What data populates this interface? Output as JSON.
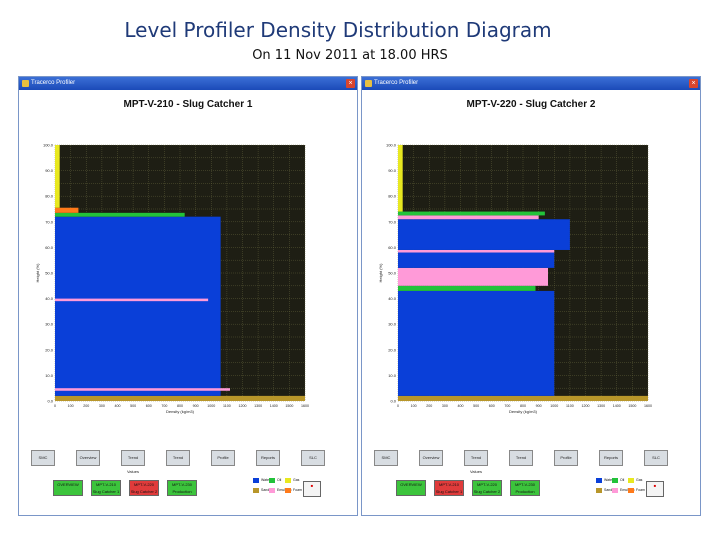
{
  "slide": {
    "title": "Level Profiler Density Distribution Diagram",
    "subtitle": "On 11 Nov 2011 at 18.00 HRS"
  },
  "colors": {
    "water": "#0a3fd8",
    "oil": "#22c23a",
    "gas": "#e8e820",
    "sand": "#b8962a",
    "emulsion": "#ff9ad8",
    "foam": "#ff7a1a",
    "plot_bg": "#1e1e14",
    "grid": "#6a6a40",
    "button_green": "#3cc43c",
    "button_red": "#e03b3b"
  },
  "windows": [
    {
      "app_title": "Tracerco Profiler",
      "chart_title": "MPT-V-210 - Slug Catcher 1",
      "buttons": [
        "SMC",
        "Overview",
        "Trend Values",
        "Trend",
        "Profile",
        "Reports",
        "SLC"
      ],
      "status": [
        {
          "label": "OVERVIEW",
          "color": "green"
        },
        {
          "label": "MPT-V-210 Slug Catcher 1",
          "color": "green"
        },
        {
          "label": "MPT-V-220 Slug Catcher 2",
          "color": "red"
        },
        {
          "label": "MPT-V-230 Production Separator",
          "color": "green"
        }
      ]
    },
    {
      "app_title": "Tracerco Profiler",
      "chart_title": "MPT-V-220 - Slug Catcher 2",
      "buttons": [
        "SMC",
        "Overview",
        "Trend Values",
        "Trend",
        "Profile",
        "Reports",
        "SLC"
      ],
      "status": [
        {
          "label": "OVERVIEW",
          "color": "green"
        },
        {
          "label": "MPT-V-210 Slug Catcher 1",
          "color": "red"
        },
        {
          "label": "MPT-V-220 Slug Catcher 2",
          "color": "green"
        },
        {
          "label": "MPT-V-230 Production Separator",
          "color": "green"
        }
      ]
    }
  ],
  "legend": [
    {
      "label": "Water",
      "color": "#0a3fd8"
    },
    {
      "label": "Oil",
      "color": "#22c23a"
    },
    {
      "label": "Gas",
      "color": "#e8e820"
    },
    {
      "label": "Sand",
      "color": "#b8962a"
    },
    {
      "label": "Emulsion",
      "color": "#ff9ad8"
    },
    {
      "label": "Foam",
      "color": "#ff7a1a"
    }
  ],
  "chart_data": [
    {
      "type": "bar",
      "title": "MPT-V-210 - Slug Catcher 1",
      "xlabel": "Density (kg/m3)",
      "ylabel": "Height (%)",
      "xlim": [
        0,
        1600
      ],
      "ylim": [
        0,
        100
      ],
      "x_ticks": [
        "0",
        "100",
        "200",
        "300",
        "400",
        "500",
        "600",
        "700",
        "800",
        "900",
        "1000",
        "1100",
        "1200",
        "1300",
        "1400",
        "1500",
        "1600"
      ],
      "y_ticks": [
        "0.0",
        "5.0",
        "10.0",
        "15.0",
        "20.0",
        "25.0",
        "30.0",
        "35.0",
        "40.0",
        "45.0",
        "50.0",
        "55.0",
        "60.0",
        "65.0",
        "70.0",
        "75.0",
        "80.0",
        "85.0",
        "90.0",
        "95.0",
        "100.0"
      ],
      "layers": [
        {
          "phase": "Sand",
          "from": 0,
          "to": 2,
          "density": 1600
        },
        {
          "phase": "Water",
          "from": 2,
          "to": 72,
          "density": 1060
        },
        {
          "phase": "Emulsion",
          "from": 39,
          "to": 40,
          "density": 980
        },
        {
          "phase": "Emulsion",
          "from": 4,
          "to": 5,
          "density": 1120
        },
        {
          "phase": "Oil",
          "from": 72,
          "to": 73.5,
          "density": 830
        },
        {
          "phase": "Foam",
          "from": 73.5,
          "to": 75.5,
          "density": 150
        },
        {
          "phase": "Gas",
          "from": 75.5,
          "to": 100,
          "density": 30
        }
      ]
    },
    {
      "type": "bar",
      "title": "MPT-V-220 - Slug Catcher 2",
      "xlabel": "Density (kg/m3)",
      "ylabel": "Height (%)",
      "xlim": [
        0,
        1600
      ],
      "ylim": [
        0,
        100
      ],
      "x_ticks": [
        "0",
        "100",
        "200",
        "300",
        "400",
        "500",
        "600",
        "700",
        "800",
        "900",
        "1000",
        "1100",
        "1200",
        "1300",
        "1400",
        "1500",
        "1600"
      ],
      "y_ticks": [
        "0.0",
        "5.0",
        "10.0",
        "15.0",
        "20.0",
        "25.0",
        "30.0",
        "35.0",
        "40.0",
        "45.0",
        "50.0",
        "55.0",
        "60.0",
        "65.0",
        "70.0",
        "75.0",
        "80.0",
        "85.0",
        "90.0",
        "95.0",
        "100.0"
      ],
      "layers": [
        {
          "phase": "Sand",
          "from": 0,
          "to": 2,
          "density": 1600
        },
        {
          "phase": "Water",
          "from": 2,
          "to": 43,
          "density": 1000
        },
        {
          "phase": "Oil",
          "from": 43,
          "to": 45,
          "density": 880
        },
        {
          "phase": "Emulsion",
          "from": 45,
          "to": 52,
          "density": 960
        },
        {
          "phase": "Water",
          "from": 52,
          "to": 58,
          "density": 1000
        },
        {
          "phase": "Emulsion",
          "from": 58,
          "to": 59,
          "density": 1000
        },
        {
          "phase": "Water",
          "from": 59,
          "to": 71,
          "density": 1100
        },
        {
          "phase": "Emulsion",
          "from": 71,
          "to": 72.5,
          "density": 900
        },
        {
          "phase": "Oil",
          "from": 72.5,
          "to": 74,
          "density": 940
        },
        {
          "phase": "Gas",
          "from": 74,
          "to": 100,
          "density": 30
        }
      ]
    }
  ]
}
